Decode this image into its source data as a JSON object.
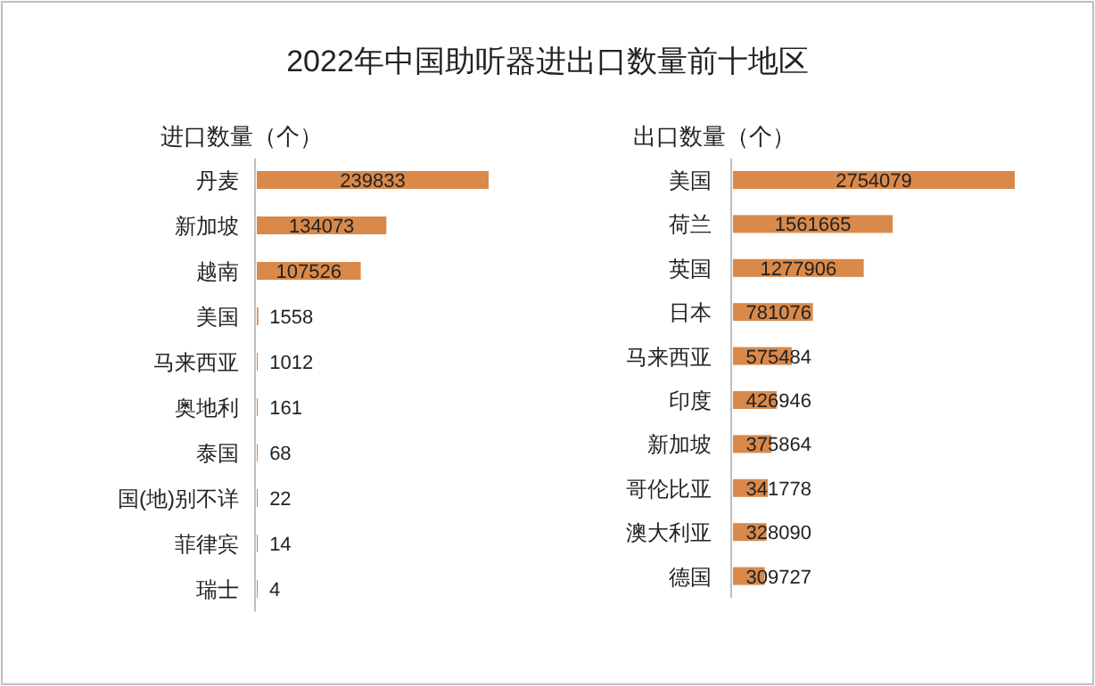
{
  "chart_data": [
    {
      "type": "bar",
      "orientation": "horizontal",
      "title": "2022年中国助听器进出口数量前十地区",
      "subtitle": "进口数量（个）",
      "categories": [
        "丹麦",
        "新加坡",
        "越南",
        "美国",
        "马来西亚",
        "奥地利",
        "泰国",
        "国(地)别不详",
        "菲律宾",
        "瑞士"
      ],
      "values": [
        239833,
        134073,
        107526,
        1558,
        1012,
        161,
        68,
        22,
        14,
        4
      ],
      "color": "#d9894a",
      "data_labels": true
    },
    {
      "type": "bar",
      "orientation": "horizontal",
      "subtitle": "出口数量（个）",
      "categories": [
        "美国",
        "荷兰",
        "英国",
        "日本",
        "马来西亚",
        "印度",
        "新加坡",
        "哥伦比亚",
        "澳大利亚",
        "德国"
      ],
      "values": [
        2754079,
        1561665,
        1277906,
        781076,
        575484,
        426946,
        375864,
        341778,
        328090,
        309727
      ],
      "color": "#d9894a",
      "data_labels": true
    }
  ]
}
